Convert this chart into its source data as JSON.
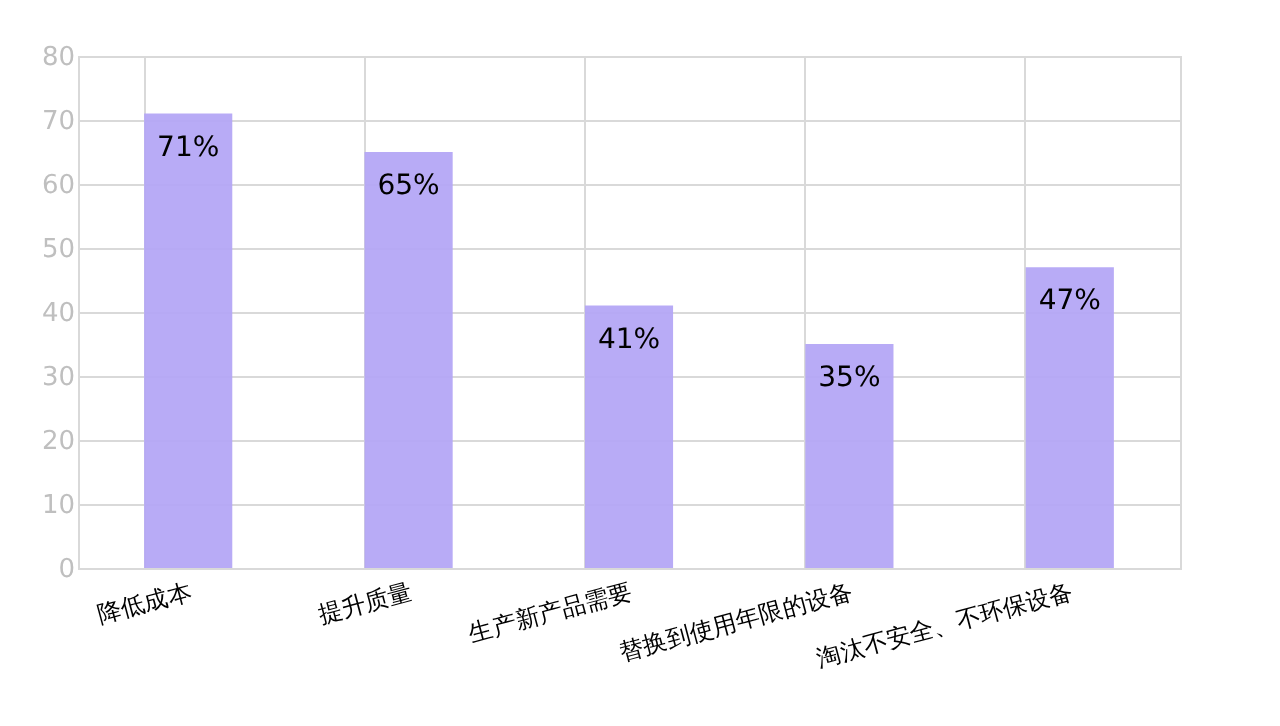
{
  "chart_data": {
    "type": "bar",
    "categories": [
      "降低成本",
      "提升质量",
      "生产新产品需要",
      "替换到使用年限的设备",
      "淘汰不安全、不环保设备"
    ],
    "values": [
      71,
      65,
      41,
      35,
      47
    ],
    "value_labels": [
      "71%",
      "65%",
      "41%",
      "35%",
      "47%"
    ],
    "color": "#b4a7f5",
    "ylim": [
      0,
      80
    ],
    "yticks": [
      0,
      10,
      20,
      30,
      40,
      50,
      60,
      70,
      80
    ],
    "grid": true
  }
}
